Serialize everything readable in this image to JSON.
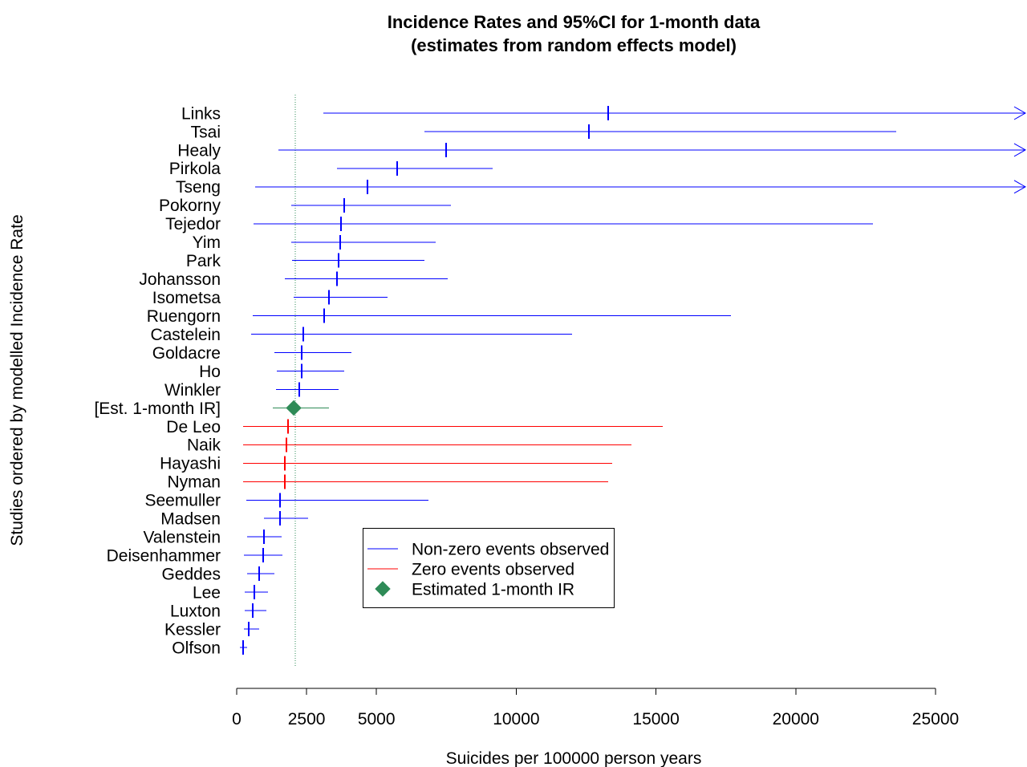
{
  "chart_data": {
    "type": "scatter",
    "title": "Incidence Rates and 95%CI for 1-month data",
    "subtitle": "(estimates from random effects model)",
    "xlabel": "Suicides per 100000 person years",
    "ylabel": "Studies ordered by modelled Incidence Rate",
    "xlim": [
      0,
      25000
    ],
    "x_ticks": [
      {
        "value": 0,
        "label": "0"
      },
      {
        "value": 2500,
        "label": "2500"
      },
      {
        "value": 5000,
        "label": "5000"
      },
      {
        "value": 10000,
        "label": "10000"
      },
      {
        "value": 15000,
        "label": "15000"
      },
      {
        "value": 20000,
        "label": "20000"
      },
      {
        "value": 25000,
        "label": "25000"
      }
    ],
    "grid": false,
    "legend_position": "bottom-center",
    "reference_line": {
      "x": 2090,
      "style": "dotted",
      "color": "#2E8B57"
    },
    "legend": [
      {
        "label": "Non-zero events observed",
        "marker": "line",
        "color": "#0000FF"
      },
      {
        "label": "Zero events observed",
        "marker": "line",
        "color": "#FF0000"
      },
      {
        "label": "Estimated 1-month IR",
        "marker": "diamond",
        "color": "#2E8B57"
      }
    ],
    "studies": [
      {
        "name": "Links",
        "estimate": 13290,
        "lower": 3100,
        "upper": null,
        "upper_off_scale": true,
        "group": 0
      },
      {
        "name": "Tsai",
        "estimate": 12600,
        "lower": 6720,
        "upper": 23590,
        "group": 0
      },
      {
        "name": "Healy",
        "estimate": 7490,
        "lower": 1490,
        "upper": null,
        "upper_off_scale": true,
        "group": 0
      },
      {
        "name": "Pirkola",
        "estimate": 5740,
        "lower": 3590,
        "upper": 9160,
        "group": 0
      },
      {
        "name": "Tseng",
        "estimate": 4680,
        "lower": 660,
        "upper": null,
        "upper_off_scale": true,
        "group": 0
      },
      {
        "name": "Pokorny",
        "estimate": 3850,
        "lower": 1950,
        "upper": 7660,
        "group": 0
      },
      {
        "name": "Tejedor",
        "estimate": 3730,
        "lower": 600,
        "upper": 22760,
        "group": 0
      },
      {
        "name": "Yim",
        "estimate": 3700,
        "lower": 1950,
        "upper": 7120,
        "group": 0
      },
      {
        "name": "Park",
        "estimate": 3650,
        "lower": 1980,
        "upper": 6720,
        "group": 0
      },
      {
        "name": "Johansson",
        "estimate": 3590,
        "lower": 1720,
        "upper": 7550,
        "group": 0
      },
      {
        "name": "Isometsa",
        "estimate": 3300,
        "lower": 2040,
        "upper": 5400,
        "group": 0
      },
      {
        "name": "Ruengorn",
        "estimate": 3130,
        "lower": 570,
        "upper": 17680,
        "group": 0
      },
      {
        "name": "Castelein",
        "estimate": 2380,
        "lower": 520,
        "upper": 12000,
        "group": 0
      },
      {
        "name": "Goldacre",
        "estimate": 2330,
        "lower": 1350,
        "upper": 4100,
        "group": 0
      },
      {
        "name": "Ho",
        "estimate": 2330,
        "lower": 1440,
        "upper": 3850,
        "group": 0
      },
      {
        "name": "Winkler",
        "estimate": 2240,
        "lower": 1410,
        "upper": 3650,
        "group": 0
      },
      {
        "name": "[Est. 1-month IR]",
        "estimate": 2040,
        "lower": 1290,
        "upper": 3300,
        "group": 2
      },
      {
        "name": "De Leo",
        "estimate": 1840,
        "lower": 230,
        "upper": 15240,
        "group": 1
      },
      {
        "name": "Naik",
        "estimate": 1780,
        "lower": 230,
        "upper": 14120,
        "group": 1
      },
      {
        "name": "Hayashi",
        "estimate": 1720,
        "lower": 230,
        "upper": 13430,
        "group": 1
      },
      {
        "name": "Nyman",
        "estimate": 1720,
        "lower": 230,
        "upper": 13290,
        "group": 1
      },
      {
        "name": "Seemuller",
        "estimate": 1550,
        "lower": 340,
        "upper": 6860,
        "group": 0
      },
      {
        "name": "Madsen",
        "estimate": 1550,
        "lower": 980,
        "upper": 2560,
        "group": 0
      },
      {
        "name": "Valenstein",
        "estimate": 980,
        "lower": 370,
        "upper": 1610,
        "group": 0
      },
      {
        "name": "Deisenhammer",
        "estimate": 950,
        "lower": 260,
        "upper": 1640,
        "group": 0
      },
      {
        "name": "Geddes",
        "estimate": 800,
        "lower": 370,
        "upper": 1350,
        "group": 0
      },
      {
        "name": "Lee",
        "estimate": 630,
        "lower": 290,
        "upper": 1120,
        "group": 0
      },
      {
        "name": "Luxton",
        "estimate": 570,
        "lower": 290,
        "upper": 1060,
        "group": 0
      },
      {
        "name": "Kessler",
        "estimate": 430,
        "lower": 260,
        "upper": 800,
        "group": 0
      },
      {
        "name": "Olfson",
        "estimate": 230,
        "lower": 110,
        "upper": 370,
        "group": 0
      }
    ]
  }
}
